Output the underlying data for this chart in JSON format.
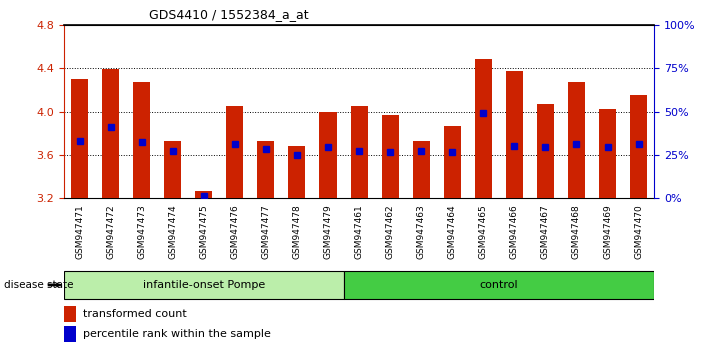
{
  "title": "GDS4410 / 1552384_a_at",
  "samples": [
    "GSM947471",
    "GSM947472",
    "GSM947473",
    "GSM947474",
    "GSM947475",
    "GSM947476",
    "GSM947477",
    "GSM947478",
    "GSM947479",
    "GSM947461",
    "GSM947462",
    "GSM947463",
    "GSM947464",
    "GSM947465",
    "GSM947466",
    "GSM947467",
    "GSM947468",
    "GSM947469",
    "GSM947470"
  ],
  "bar_heights": [
    4.3,
    4.39,
    4.27,
    3.73,
    3.27,
    4.05,
    3.73,
    3.68,
    4.0,
    4.05,
    3.97,
    3.73,
    3.87,
    4.48,
    4.37,
    4.07,
    4.27,
    4.02,
    4.15
  ],
  "blue_dots": [
    3.73,
    3.86,
    3.72,
    3.64,
    3.22,
    3.7,
    3.65,
    3.6,
    3.67,
    3.64,
    3.63,
    3.64,
    3.63,
    3.99,
    3.68,
    3.67,
    3.7,
    3.67,
    3.7
  ],
  "bar_color": "#CC2200",
  "dot_color": "#0000CC",
  "ymin": 3.2,
  "ymax": 4.8,
  "yticks": [
    3.2,
    3.6,
    4.0,
    4.4,
    4.8
  ],
  "right_yticks": [
    0,
    25,
    50,
    75,
    100
  ],
  "right_yticklabels": [
    "0%",
    "25%",
    "50%",
    "75%",
    "100%"
  ],
  "group1_label": "infantile-onset Pompe",
  "group2_label": "control",
  "group1_color": "#BBEEAA",
  "group2_color": "#44CC44",
  "n_group1": 9,
  "n_group2": 10,
  "disease_state_label": "disease state",
  "legend1": "transformed count",
  "legend2": "percentile rank within the sample",
  "bar_color_legend": "#CC2200",
  "dot_color_legend": "#0000CC",
  "bar_bottom": 3.2,
  "background_color": "#FFFFFF",
  "tick_label_bg": "#DDDDDD",
  "bar_width": 0.55
}
